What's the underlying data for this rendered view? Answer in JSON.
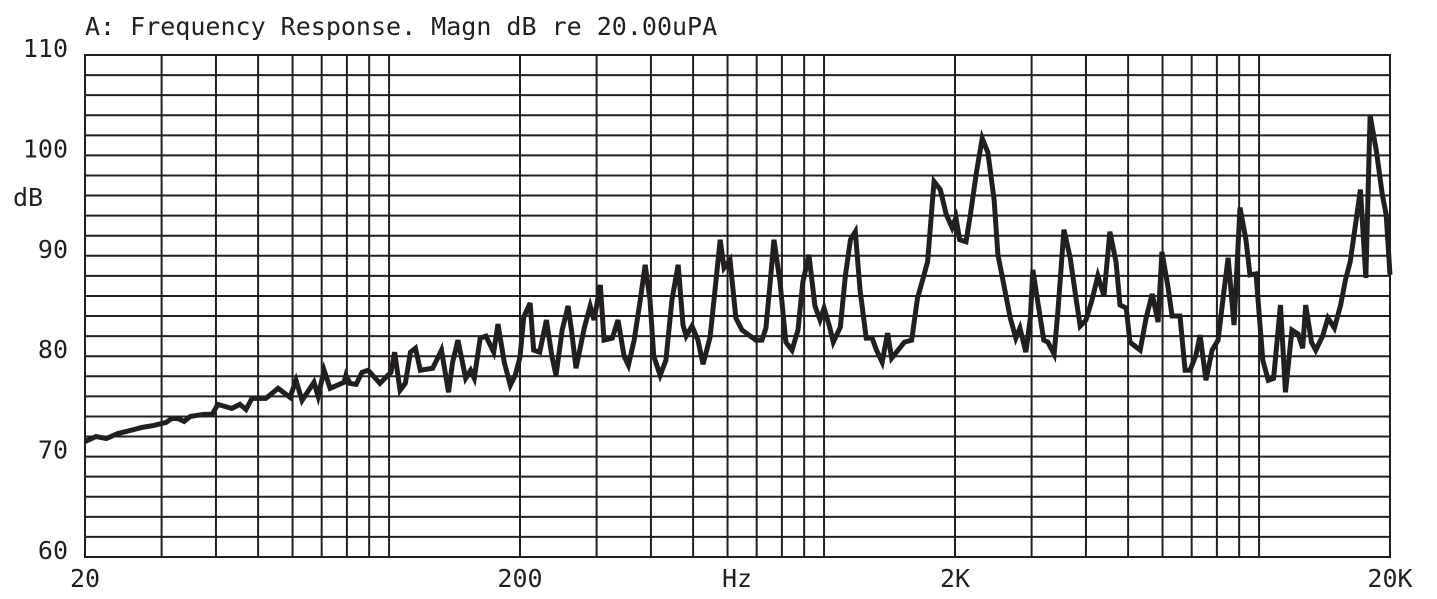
{
  "chart_data": {
    "type": "line",
    "title": "A: Frequency Response. Magn dB re 20.00uPA",
    "x_label": "Hz",
    "y_label": "dB",
    "log_x": true,
    "grid": true,
    "color": "#231f20",
    "xlim": [
      20,
      20000
    ],
    "ylim": [
      60,
      110
    ],
    "xticks": [
      20,
      200,
      {
        "value": 2000,
        "label": "2K"
      },
      {
        "value": 20000,
        "label": "20K"
      }
    ],
    "xgrid": [
      30,
      40,
      50,
      60,
      70,
      80,
      90,
      100,
      300,
      400,
      500,
      600,
      700,
      800,
      900,
      1000,
      3000,
      4000,
      5000,
      6000,
      7000,
      8000,
      9000,
      10000
    ],
    "yticks": [
      60,
      70,
      80,
      90,
      100,
      110
    ],
    "ygrid": [
      62,
      64,
      66,
      68,
      72,
      74,
      76,
      78,
      82,
      84,
      86,
      88,
      92,
      94,
      96,
      98,
      102,
      104,
      106,
      108
    ],
    "x": [
      20,
      21.2,
      22.4,
      23.8,
      25.4,
      27,
      28.8,
      30.7,
      31.7,
      32.7,
      33.8,
      34.9,
      37.5,
      39.2,
      40.4,
      43.5,
      45.4,
      46.9,
      48.4,
      52.1,
      55.6,
      59.2,
      61.1,
      63.1,
      67.2,
      68.7,
      70.9,
      73.2,
      78.8,
      79.6,
      81.3,
      84,
      86.7,
      89.5,
      95.3,
      101,
      103,
      106,
      109,
      112,
      115,
      118,
      126,
      132,
      137,
      140,
      144,
      150,
      154,
      157,
      162,
      167,
      174,
      178,
      184,
      190,
      195,
      200,
      204,
      211,
      215,
      222,
      230,
      237,
      242,
      250,
      258,
      263,
      269,
      281,
      290,
      296,
      306,
      312,
      326,
      336,
      347,
      355,
      366,
      378,
      388,
      398,
      406,
      420,
      433,
      447,
      462,
      474,
      482,
      497,
      513,
      527,
      547,
      564,
      577,
      589,
      608,
      627,
      648,
      697,
      720,
      735,
      751,
      767,
      792,
      817,
      844,
      871,
      894,
      923,
      953,
      979,
      1000,
      1030,
      1050,
      1090,
      1120,
      1150,
      1180,
      1210,
      1250,
      1290,
      1320,
      1360,
      1400,
      1430,
      1530,
      1590,
      1640,
      1680,
      1730,
      1790,
      1850,
      1910,
      1970,
      2010,
      2050,
      2120,
      2170,
      2240,
      2310,
      2380,
      2460,
      2510,
      2590,
      2680,
      2760,
      2820,
      2910,
      2980,
      3020,
      3100,
      3200,
      3270,
      3380,
      3450,
      3560,
      3680,
      3800,
      3880,
      4000,
      4130,
      4260,
      4400,
      4540,
      4690,
      4790,
      4950,
      5050,
      5330,
      5500,
      5680,
      5860,
      5980,
      6180,
      6310,
      6580,
      6760,
      6940,
      7160,
      7320,
      7550,
      7800,
      8050,
      8310,
      8490,
      8760,
      9040,
      9330,
      9530,
      9840,
      10200,
      10500,
      10800,
      11200,
      11500,
      11900,
      12300,
      12600,
      12800,
      13200,
      13500,
      14000,
      14400,
      14900,
      15400,
      15800,
      16200,
      16700,
      17100,
      17600,
      18000,
      18600,
      19200,
      19600,
      20000
    ],
    "values": [
      71.5,
      72.0,
      71.8,
      72.3,
      72.6,
      72.9,
      73.1,
      73.4,
      73.8,
      73.8,
      73.5,
      74.0,
      74.2,
      74.2,
      75.2,
      74.8,
      75.2,
      74.7,
      75.8,
      75.8,
      76.8,
      75.9,
      77.6,
      75.6,
      77.4,
      76.0,
      78.6,
      76.8,
      77.4,
      78.1,
      77.3,
      77.2,
      78.4,
      78.6,
      77.3,
      78.4,
      80.4,
      76.6,
      77.3,
      80.4,
      80.8,
      78.6,
      78.8,
      80.6,
      76.4,
      79.4,
      81.6,
      77.8,
      78.6,
      77.8,
      81.8,
      82.0,
      80.4,
      83.2,
      79.4,
      77.1,
      78.1,
      79.9,
      83.9,
      85.3,
      80.6,
      80.4,
      83.6,
      79.9,
      78.1,
      82.6,
      85.0,
      82.4,
      78.8,
      82.8,
      85.0,
      83.6,
      87.1,
      81.6,
      81.8,
      83.6,
      80.0,
      79.1,
      81.6,
      85.6,
      89.1,
      85.6,
      80.0,
      78.1,
      79.6,
      85.6,
      89.1,
      83.1,
      82.0,
      83.0,
      81.6,
      79.2,
      81.9,
      87.4,
      91.6,
      88.8,
      89.6,
      83.8,
      82.6,
      81.6,
      81.6,
      82.8,
      87.1,
      91.6,
      87.4,
      81.4,
      80.6,
      82.6,
      87.4,
      90.1,
      85.0,
      83.6,
      84.8,
      82.9,
      81.4,
      82.9,
      88.1,
      91.6,
      92.4,
      86.6,
      81.8,
      81.8,
      80.6,
      79.4,
      82.3,
      79.8,
      81.4,
      81.6,
      85.8,
      87.4,
      89.4,
      97.4,
      96.6,
      94.1,
      92.8,
      93.8,
      91.6,
      91.4,
      94.1,
      98.3,
      101.7,
      100.3,
      95.6,
      90.1,
      87.1,
      83.8,
      81.8,
      82.8,
      80.4,
      83.8,
      88.6,
      85.4,
      81.6,
      81.4,
      80.2,
      84.6,
      92.6,
      89.8,
      85.6,
      83.0,
      83.6,
      85.6,
      88.0,
      86.0,
      92.4,
      89.4,
      85.1,
      84.8,
      81.4,
      80.6,
      83.8,
      86.2,
      83.4,
      90.4,
      86.8,
      84.0,
      84.0,
      78.6,
      78.6,
      80.1,
      82.1,
      77.6,
      80.6,
      81.6,
      86.6,
      89.8,
      83.1,
      94.8,
      91.6,
      88.1,
      88.2,
      79.6,
      77.6,
      77.8,
      85.1,
      76.4,
      82.6,
      82.2,
      80.8,
      85.1,
      81.4,
      80.6,
      82.0,
      83.8,
      82.8,
      85.1,
      87.6,
      89.4,
      93.4,
      96.6,
      87.8,
      104.0,
      100.5,
      96.1,
      94.1,
      88.1
    ]
  }
}
